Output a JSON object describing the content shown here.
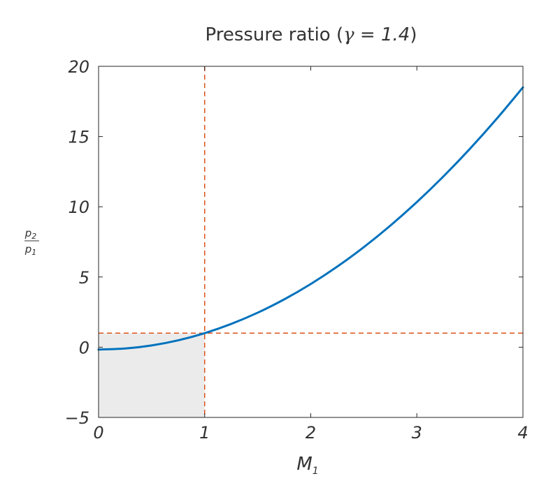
{
  "chart_data": {
    "type": "line",
    "title": {
      "text": "Pressure ratio (",
      "symbol": "γ",
      "equals": " = ",
      "value": "1.4",
      "close": ")"
    },
    "xlabel": {
      "main": "M",
      "sub": "1"
    },
    "ylabel": {
      "num_main": "p",
      "num_sub": "2",
      "den_main": "p",
      "den_sub": "1"
    },
    "xlim": [
      0,
      4
    ],
    "ylim": [
      -5,
      20
    ],
    "xticks": [
      {
        "value": 0,
        "label": "0"
      },
      {
        "value": 1,
        "label": "1"
      },
      {
        "value": 2,
        "label": "2"
      },
      {
        "value": 3,
        "label": "3"
      },
      {
        "value": 4,
        "label": "4"
      }
    ],
    "yticks": [
      {
        "value": -5,
        "label": "−5"
      },
      {
        "value": 0,
        "label": "0"
      },
      {
        "value": 5,
        "label": "5"
      },
      {
        "value": 10,
        "label": "10"
      },
      {
        "value": 15,
        "label": "15"
      },
      {
        "value": 20,
        "label": "20"
      }
    ],
    "series": [
      {
        "x": [
          0,
          0.25,
          0.5,
          0.75,
          1,
          1.25,
          1.5,
          1.75,
          2,
          2.25,
          2.5,
          2.75,
          3,
          3.25,
          3.5,
          3.75,
          4
        ],
        "y": [
          -0.167,
          -0.094,
          0.125,
          0.49,
          1.0,
          1.656,
          2.458,
          3.406,
          4.5,
          5.74,
          7.125,
          8.656,
          10.333,
          12.156,
          14.125,
          16.24,
          18.5
        ],
        "color": "#0072bd"
      }
    ],
    "reference_lines": [
      {
        "orientation": "vertical",
        "x": 1,
        "color": "#d95319",
        "style": "dashed"
      },
      {
        "orientation": "horizontal",
        "y": 1,
        "color": "#d95319",
        "style": "dashed"
      }
    ],
    "shaded_region": {
      "x": [
        0,
        1
      ],
      "y": [
        -5,
        1
      ],
      "color": "#ebebeb"
    },
    "grid": false,
    "legend": "none"
  }
}
